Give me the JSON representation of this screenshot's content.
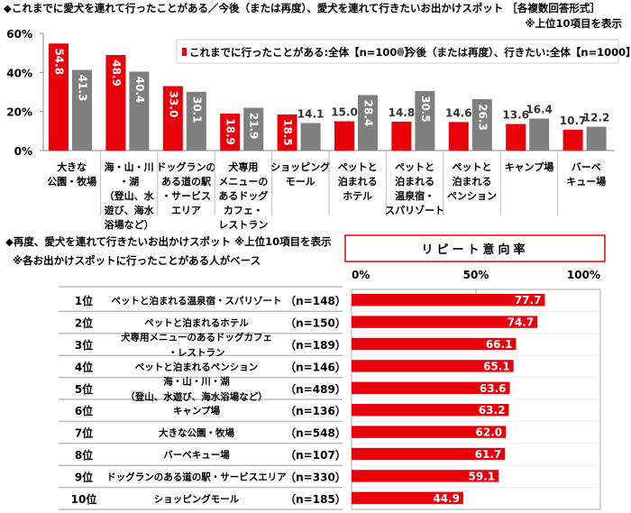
{
  "chart_data": [
    {
      "type": "bar",
      "title": "◆これまでに愛犬を連れて行ったことがある／今後（または再度）、愛犬を連れて行きたいお出かけスポット ［各複数回答形式］",
      "subtitle": "※上位10項目を表示",
      "categories": [
        [
          "大きな",
          "公園・牧場"
        ],
        [
          "海・山・川",
          "・湖",
          "（登山、水",
          "遊び、海水",
          "浴場など）"
        ],
        [
          "ドッグランの",
          "ある道の駅",
          "・サービス",
          "エリア"
        ],
        [
          "犬専用",
          "メニューの",
          "あるドッグ",
          "カフェ・",
          "レストラン"
        ],
        [
          "ショッピング",
          "モール"
        ],
        [
          "ペットと",
          "泊まれる",
          "ホテル"
        ],
        [
          "ペットと",
          "泊まれる",
          "温泉宿・",
          "スパリゾート"
        ],
        [
          "ペットと",
          "泊まれる",
          "ペンション"
        ],
        [
          "キャンプ場"
        ],
        [
          "バーベ",
          "キュー場"
        ]
      ],
      "series": [
        {
          "name": "これまでに行ったことがある:全体【n=1000】",
          "color": "#e8000b",
          "values": [
            54.8,
            48.9,
            33.0,
            18.9,
            18.5,
            15.0,
            14.8,
            14.6,
            13.6,
            10.7
          ]
        },
        {
          "name": "今後（または再度）、行きたい:全体【n=1000】",
          "color": "#7f7f7f",
          "values": [
            41.3,
            40.4,
            30.1,
            21.9,
            14.1,
            28.4,
            30.5,
            26.3,
            16.4,
            12.2
          ]
        }
      ],
      "ylim": [
        0,
        60
      ],
      "yticks": [
        "0%",
        "20%",
        "40%",
        "60%"
      ],
      "legend": "top-right",
      "grid": false
    },
    {
      "type": "bar",
      "orientation": "horizontal",
      "title": "◆再度、愛犬を連れて行きたいお出かけスポット ※上位10項目を表示",
      "subtitle": "※各お出かけスポットに行ったことがある人がベース",
      "header": "リピート意向率",
      "xlim": [
        0,
        100
      ],
      "xticks": [
        "0%",
        "50%",
        "100%"
      ],
      "color": "#e8000b",
      "rows": [
        {
          "rank": "1位",
          "label": [
            "ペットと泊まれる温泉宿・スパリゾート"
          ],
          "n": "（n=148）",
          "value": 77.7
        },
        {
          "rank": "2位",
          "label": [
            "ペットと泊まれるホテル"
          ],
          "n": "（n=150）",
          "value": 74.7
        },
        {
          "rank": "3位",
          "label": [
            "犬専用メニューのあるドッグカフェ",
            "・レストラン"
          ],
          "n": "（n=189）",
          "value": 66.1
        },
        {
          "rank": "4位",
          "label": [
            "ペットと泊まれるペンション"
          ],
          "n": "（n=146）",
          "value": 65.1
        },
        {
          "rank": "5位",
          "label": [
            "海・山・川・湖",
            "（登山、水遊び、海水浴場など）"
          ],
          "n": "（n=489）",
          "value": 63.6
        },
        {
          "rank": "6位",
          "label": [
            "キャンプ場"
          ],
          "n": "（n=136）",
          "value": 63.2
        },
        {
          "rank": "7位",
          "label": [
            "大きな公園・牧場"
          ],
          "n": "（n=548）",
          "value": 62.0
        },
        {
          "rank": "8位",
          "label": [
            "バーベキュー場"
          ],
          "n": "（n=107）",
          "value": 61.7
        },
        {
          "rank": "9位",
          "label": [
            "ドッグランのある道の駅・サービスエリア"
          ],
          "n": "（n=330）",
          "value": 59.1
        },
        {
          "rank": "10位",
          "label": [
            "ショッピングモール"
          ],
          "n": "（n=185）",
          "value": 44.9
        }
      ]
    }
  ]
}
